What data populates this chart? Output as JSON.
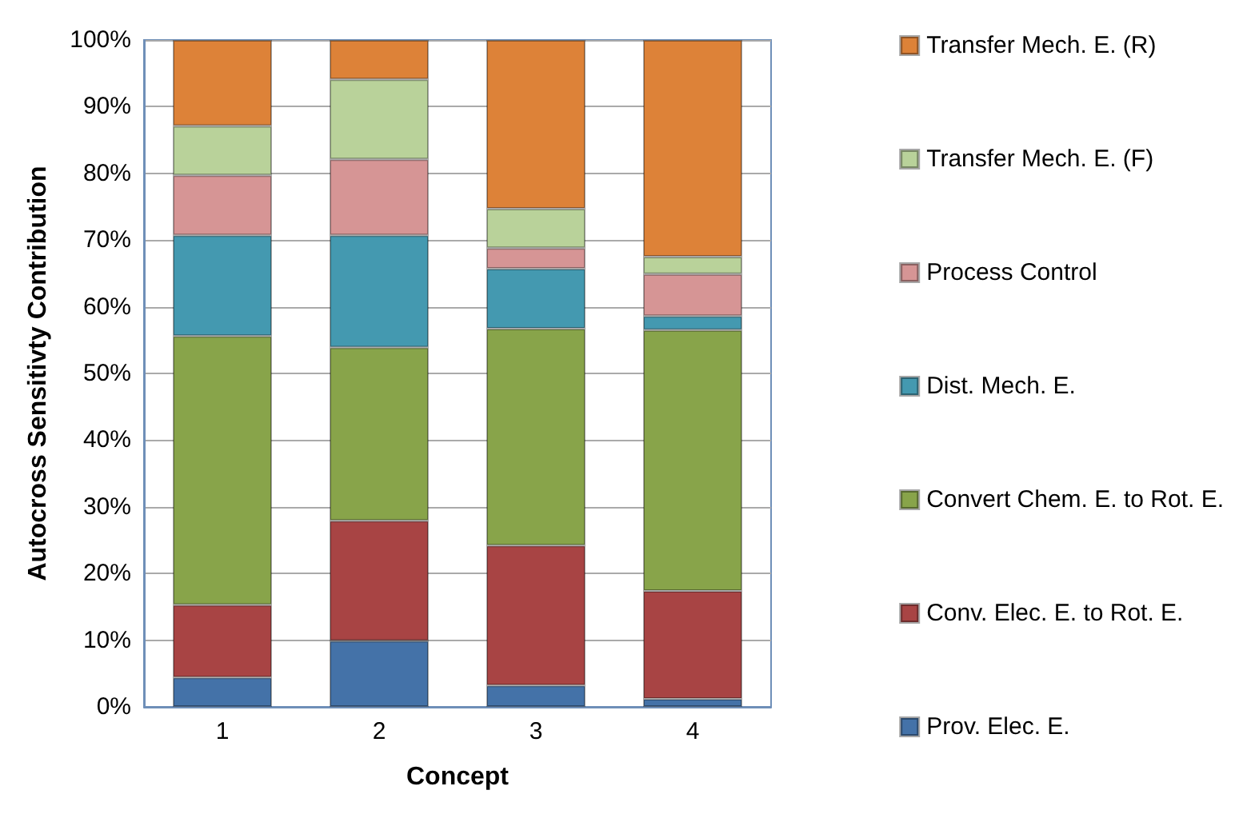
{
  "chart_data": {
    "type": "bar",
    "stacked": true,
    "xlabel": "Concept",
    "ylabel": "Autocross Sensitivty Contribution",
    "categories": [
      "1",
      "2",
      "3",
      "4"
    ],
    "series": [
      {
        "name": "Prov. Elec. E.",
        "color": "#4472a8",
        "values": [
          4.4,
          9.9,
          3.2,
          1.2
        ]
      },
      {
        "name": "Conv. Elec. E. to Rot. E.",
        "color": "#a84444",
        "values": [
          10.9,
          18.0,
          21.0,
          16.2
        ]
      },
      {
        "name": "Convert Chem. E. to Rot. E.",
        "color": "#88a44a",
        "values": [
          40.3,
          26.0,
          32.5,
          39.1
        ]
      },
      {
        "name": "Dist. Mech. E.",
        "color": "#4499b0",
        "values": [
          15.1,
          16.8,
          9.0,
          2.1
        ]
      },
      {
        "name": "Process Control",
        "color": "#d69595",
        "values": [
          9.0,
          11.4,
          3.1,
          6.3
        ]
      },
      {
        "name": "Transfer Mech. E. (F)",
        "color": "#b9d29a",
        "values": [
          7.4,
          12.0,
          5.9,
          2.6
        ]
      },
      {
        "name": "Transfer Mech. E. (R)",
        "color": "#dd8238",
        "values": [
          12.9,
          5.9,
          25.3,
          32.5
        ]
      }
    ],
    "ylim": [
      0,
      100
    ],
    "yticks": [
      {
        "value": 0,
        "label": "0%"
      },
      {
        "value": 10,
        "label": "10%"
      },
      {
        "value": 20,
        "label": "20%"
      },
      {
        "value": 30,
        "label": "30%"
      },
      {
        "value": 40,
        "label": "40%"
      },
      {
        "value": 50,
        "label": "50%"
      },
      {
        "value": 60,
        "label": "60%"
      },
      {
        "value": 70,
        "label": "70%"
      },
      {
        "value": 80,
        "label": "80%"
      },
      {
        "value": 90,
        "label": "90%"
      },
      {
        "value": 100,
        "label": "100%"
      }
    ],
    "grid": "y",
    "legend": "right"
  }
}
